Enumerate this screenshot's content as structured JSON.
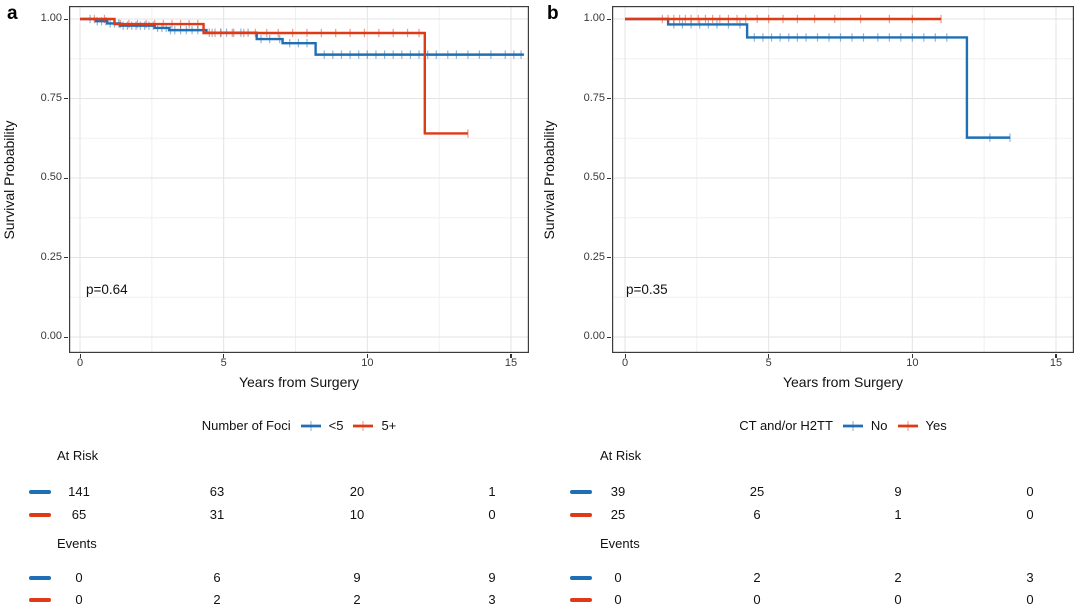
{
  "colors": {
    "blue": "#1F6FB5",
    "red": "#DE3A16",
    "grid_major": "#e3e3e3",
    "grid_minor": "#f0f0f0",
    "panel_border": "#3c3c3c",
    "tick_text": "#383838",
    "text": "#111111"
  },
  "chart_data": [
    {
      "id": "a",
      "type": "line",
      "chart_kind": "kaplan-meier-survival",
      "panel_label": "a",
      "xlabel": "Years from Surgery",
      "ylabel": "Survival Probability",
      "pvalue": "p=0.64",
      "xlim": [
        -0.4,
        15.6
      ],
      "ylim": [
        -0.05,
        1.04
      ],
      "x_tick_values": [
        0,
        5,
        10,
        15
      ],
      "x_tick_labels": [
        "0",
        "5",
        "10",
        "15"
      ],
      "x_minor_ticks": [
        2.5,
        7.5,
        12.5
      ],
      "y_tick_values": [
        1.0,
        0.75,
        0.5,
        0.25,
        0.0
      ],
      "y_tick_labels": [
        "1.00",
        "0.75",
        "0.50",
        "0.25",
        "0.00"
      ],
      "y_minor_ticks": [
        0.875,
        0.625,
        0.375,
        0.125
      ],
      "grid": true,
      "legend": {
        "position": "bottom",
        "title": "Number of Foci",
        "items": [
          {
            "label": "<5",
            "color": "#1F6FB5"
          },
          {
            "label": "5+",
            "color": "#DE3A16"
          }
        ]
      },
      "series": [
        {
          "name": "<5",
          "color": "#1F6FB5",
          "steps": [
            [
              0,
              1.0
            ],
            [
              0.55,
              0.993
            ],
            [
              0.95,
              0.986
            ],
            [
              1.4,
              0.979
            ],
            [
              2.6,
              0.972
            ],
            [
              3.1,
              0.965
            ],
            [
              4.4,
              0.957
            ],
            [
              6.15,
              0.937
            ],
            [
              7.05,
              0.924
            ],
            [
              8.2,
              0.888
            ]
          ],
          "end_time": 15.45,
          "censor_times": [
            0.35,
            0.6,
            0.75,
            0.9,
            1.05,
            1.2,
            1.35,
            1.5,
            1.65,
            1.8,
            1.95,
            2.1,
            2.25,
            2.4,
            2.55,
            2.7,
            2.85,
            3.0,
            3.15,
            3.3,
            3.5,
            3.7,
            3.9,
            4.1,
            4.3,
            4.5,
            4.7,
            4.9,
            5.1,
            5.35,
            5.6,
            5.85,
            6.3,
            6.6,
            6.95,
            7.3,
            7.6,
            7.9,
            8.5,
            8.8,
            9.1,
            9.4,
            9.7,
            10.0,
            10.3,
            10.6,
            10.9,
            11.2,
            11.5,
            11.8,
            12.1,
            12.4,
            12.8,
            13.1,
            13.5,
            13.9,
            14.3,
            14.8,
            15.1,
            15.35
          ]
        },
        {
          "name": "5+",
          "color": "#DE3A16",
          "steps": [
            [
              0,
              1.0
            ],
            [
              1.2,
              0.984
            ],
            [
              4.3,
              0.956
            ],
            [
              12.0,
              0.64
            ]
          ],
          "end_time": 13.5,
          "censor_times": [
            0.5,
            0.85,
            1.4,
            1.7,
            2.0,
            2.3,
            2.6,
            2.9,
            3.2,
            3.5,
            3.8,
            4.1,
            4.6,
            4.9,
            5.3,
            5.7,
            6.1,
            6.5,
            6.9,
            7.4,
            7.9,
            8.4,
            8.9,
            9.4,
            9.9,
            10.4,
            10.9,
            11.4,
            11.8,
            13.5
          ]
        }
      ],
      "risk_table": {
        "times": [
          0,
          5,
          10,
          15
        ],
        "sections": [
          {
            "label": "At Risk",
            "rows": [
              {
                "series": "<5",
                "color": "#1F6FB5",
                "values": [
                  "141",
                  "63",
                  "20",
                  "1"
                ]
              },
              {
                "series": "5+",
                "color": "#DE3A16",
                "values": [
                  "65",
                  "31",
                  "10",
                  "0"
                ]
              }
            ]
          },
          {
            "label": "Events",
            "rows": [
              {
                "series": "<5",
                "color": "#1F6FB5",
                "values": [
                  "0",
                  "6",
                  "9",
                  "9"
                ]
              },
              {
                "series": "5+",
                "color": "#DE3A16",
                "values": [
                  "0",
                  "2",
                  "2",
                  "3"
                ]
              }
            ]
          }
        ]
      }
    },
    {
      "id": "b",
      "type": "line",
      "chart_kind": "kaplan-meier-survival",
      "panel_label": "b",
      "xlabel": "Years from Surgery",
      "ylabel": "Survival Probability",
      "pvalue": "p=0.35",
      "xlim": [
        -0.4,
        15.6
      ],
      "ylim": [
        -0.05,
        1.04
      ],
      "x_tick_values": [
        0,
        5,
        10,
        15
      ],
      "x_tick_labels": [
        "0",
        "5",
        "10",
        "15"
      ],
      "x_minor_ticks": [
        2.5,
        7.5,
        12.5
      ],
      "y_tick_values": [
        1.0,
        0.75,
        0.5,
        0.25,
        0.0
      ],
      "y_tick_labels": [
        "1.00",
        "0.75",
        "0.50",
        "0.25",
        "0.00"
      ],
      "y_minor_ticks": [
        0.875,
        0.625,
        0.375,
        0.125
      ],
      "grid": true,
      "legend": {
        "position": "bottom",
        "title": "CT and/or H2TT",
        "items": [
          {
            "label": "No",
            "color": "#1F6FB5"
          },
          {
            "label": "Yes",
            "color": "#DE3A16"
          }
        ]
      },
      "series": [
        {
          "name": "No",
          "color": "#1F6FB5",
          "steps": [
            [
              0,
              1.0
            ],
            [
              1.5,
              0.983
            ],
            [
              4.25,
              0.942
            ],
            [
              11.9,
              0.627
            ]
          ],
          "end_time": 13.4,
          "censor_times": [
            1.7,
            2.0,
            2.3,
            2.6,
            2.9,
            3.2,
            3.6,
            4.0,
            4.5,
            4.8,
            5.1,
            5.4,
            5.7,
            6.0,
            6.3,
            6.7,
            7.1,
            7.5,
            7.9,
            8.3,
            8.8,
            9.2,
            9.6,
            10.0,
            10.4,
            10.8,
            11.2,
            12.7,
            13.4
          ]
        },
        {
          "name": "Yes",
          "color": "#DE3A16",
          "steps": [
            [
              0,
              1.0
            ]
          ],
          "end_time": 11.0,
          "censor_times": [
            1.3,
            1.5,
            1.7,
            1.9,
            2.1,
            2.3,
            2.55,
            2.8,
            3.05,
            3.3,
            3.6,
            3.9,
            4.2,
            4.6,
            5.0,
            5.5,
            6.0,
            6.6,
            7.3,
            8.2,
            9.2,
            10.0,
            11.0
          ]
        }
      ],
      "risk_table": {
        "times": [
          0,
          5,
          10,
          15
        ],
        "sections": [
          {
            "label": "At Risk",
            "rows": [
              {
                "series": "No",
                "color": "#1F6FB5",
                "values": [
                  "39",
                  "25",
                  "9",
                  "0"
                ]
              },
              {
                "series": "Yes",
                "color": "#DE3A16",
                "values": [
                  "25",
                  "6",
                  "1",
                  "0"
                ]
              }
            ]
          },
          {
            "label": "Events",
            "rows": [
              {
                "series": "No",
                "color": "#1F6FB5",
                "values": [
                  "0",
                  "2",
                  "2",
                  "3"
                ]
              },
              {
                "series": "Yes",
                "color": "#DE3A16",
                "values": [
                  "0",
                  "0",
                  "0",
                  "0"
                ]
              }
            ]
          }
        ]
      }
    }
  ]
}
